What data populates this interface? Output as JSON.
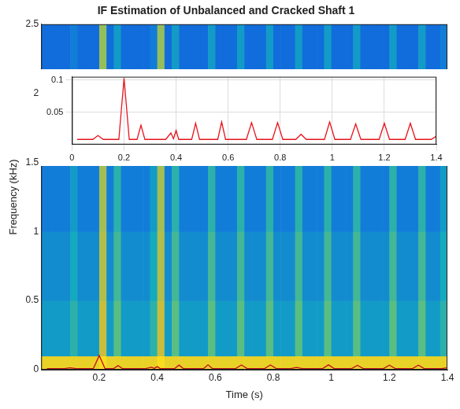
{
  "chart_data": [
    {
      "type": "spectrogram",
      "title": "IF Estimation of Unbalanced and Cracked Shaft 1",
      "xlabel": "Time (s)",
      "ylabel": "Frequency (kHz)",
      "xlim": [
        0,
        1.4
      ],
      "xticks": [
        0.2,
        0.4,
        0.6,
        0.8,
        1,
        1.2,
        1.4
      ],
      "ylim": [
        0,
        2.5
      ],
      "yticks": [
        0,
        0.5,
        1,
        1.5,
        2,
        2.5
      ],
      "grid": false,
      "heatmap": {
        "x_edges": [
          0,
          0.025,
          0.05,
          0.075,
          0.1,
          0.125,
          0.15,
          0.175,
          0.2,
          0.225,
          0.25,
          0.275,
          0.3,
          0.325,
          0.35,
          0.375,
          0.4,
          0.425,
          0.45,
          0.475,
          0.5,
          0.525,
          0.55,
          0.575,
          0.6,
          0.625,
          0.65,
          0.675,
          0.7,
          0.725,
          0.75,
          0.775,
          0.8,
          0.825,
          0.85,
          0.875,
          0.9,
          0.925,
          0.95,
          0.975,
          1,
          1.025,
          1.05,
          1.075,
          1.1,
          1.125,
          1.15,
          1.175,
          1.2,
          1.225,
          1.25,
          1.275,
          1.3,
          1.325,
          1.35,
          1.375,
          1.4
        ],
        "y_edges": [
          0,
          0.1,
          0.5,
          1,
          1.5,
          2,
          2.5
        ],
        "clim": [
          0,
          1
        ],
        "cells": [
          [
            0.95,
            0.95,
            0.95,
            0.95,
            0.95,
            0.95,
            0.95,
            0.95,
            1,
            0.95,
            0.95,
            0.95,
            0.95,
            0.95,
            0.95,
            0.95,
            1,
            0.95,
            0.95,
            0.95,
            0.95,
            0.95,
            0.95,
            0.95,
            0.95,
            0.95,
            0.95,
            0.95,
            0.95,
            0.95,
            0.95,
            0.95,
            0.95,
            0.95,
            0.95,
            0.95,
            0.95,
            0.95,
            0.95,
            0.95,
            0.95,
            0.95,
            0.95,
            0.95,
            0.95,
            0.95,
            0.95,
            0.95,
            0.95,
            0.95,
            0.95,
            0.95,
            0.95,
            0.95,
            0.95,
            0.95
          ],
          [
            0.5,
            0.5,
            0.5,
            0.5,
            0.6,
            0.5,
            0.5,
            0.5,
            0.85,
            0.5,
            0.7,
            0.5,
            0.5,
            0.5,
            0.5,
            0.6,
            0.85,
            0.5,
            0.7,
            0.5,
            0.5,
            0.5,
            0.5,
            0.7,
            0.5,
            0.5,
            0.5,
            0.7,
            0.5,
            0.5,
            0.5,
            0.7,
            0.5,
            0.5,
            0.5,
            0.7,
            0.5,
            0.5,
            0.5,
            0.7,
            0.5,
            0.5,
            0.5,
            0.7,
            0.5,
            0.5,
            0.5,
            0.5,
            0.7,
            0.5,
            0.5,
            0.5,
            0.7,
            0.5,
            0.5,
            0.6
          ],
          [
            0.45,
            0.45,
            0.45,
            0.45,
            0.55,
            0.45,
            0.45,
            0.45,
            0.82,
            0.45,
            0.65,
            0.45,
            0.45,
            0.45,
            0.45,
            0.55,
            0.82,
            0.45,
            0.65,
            0.45,
            0.45,
            0.45,
            0.45,
            0.65,
            0.45,
            0.45,
            0.45,
            0.65,
            0.45,
            0.45,
            0.45,
            0.65,
            0.45,
            0.45,
            0.45,
            0.65,
            0.45,
            0.45,
            0.45,
            0.65,
            0.45,
            0.45,
            0.45,
            0.65,
            0.45,
            0.45,
            0.45,
            0.45,
            0.65,
            0.45,
            0.45,
            0.45,
            0.65,
            0.45,
            0.45,
            0.55
          ],
          [
            0.4,
            0.4,
            0.4,
            0.4,
            0.5,
            0.4,
            0.4,
            0.4,
            0.8,
            0.4,
            0.6,
            0.4,
            0.4,
            0.4,
            0.4,
            0.5,
            0.8,
            0.4,
            0.6,
            0.4,
            0.4,
            0.4,
            0.4,
            0.6,
            0.4,
            0.4,
            0.4,
            0.6,
            0.4,
            0.4,
            0.4,
            0.6,
            0.4,
            0.4,
            0.4,
            0.6,
            0.4,
            0.4,
            0.4,
            0.6,
            0.4,
            0.4,
            0.4,
            0.6,
            0.4,
            0.4,
            0.4,
            0.4,
            0.6,
            0.4,
            0.4,
            0.4,
            0.6,
            0.4,
            0.4,
            0.5
          ],
          [
            0.36,
            0.36,
            0.36,
            0.36,
            0.45,
            0.36,
            0.36,
            0.36,
            0.8,
            0.36,
            0.55,
            0.36,
            0.36,
            0.36,
            0.36,
            0.45,
            0.8,
            0.36,
            0.55,
            0.36,
            0.36,
            0.36,
            0.36,
            0.55,
            0.36,
            0.36,
            0.36,
            0.55,
            0.36,
            0.36,
            0.36,
            0.55,
            0.36,
            0.36,
            0.36,
            0.55,
            0.36,
            0.36,
            0.36,
            0.55,
            0.36,
            0.36,
            0.36,
            0.55,
            0.36,
            0.36,
            0.36,
            0.36,
            0.55,
            0.36,
            0.36,
            0.36,
            0.55,
            0.36,
            0.36,
            0.45
          ],
          [
            0.3,
            0.3,
            0.3,
            0.3,
            0.4,
            0.3,
            0.3,
            0.3,
            0.78,
            0.3,
            0.5,
            0.3,
            0.3,
            0.3,
            0.3,
            0.4,
            0.78,
            0.3,
            0.5,
            0.3,
            0.3,
            0.3,
            0.3,
            0.5,
            0.3,
            0.3,
            0.3,
            0.5,
            0.3,
            0.3,
            0.3,
            0.5,
            0.3,
            0.3,
            0.3,
            0.5,
            0.3,
            0.3,
            0.3,
            0.5,
            0.3,
            0.3,
            0.3,
            0.5,
            0.3,
            0.3,
            0.3,
            0.3,
            0.5,
            0.3,
            0.3,
            0.3,
            0.5,
            0.3,
            0.3,
            0.4
          ]
        ]
      },
      "x": [
        0.02,
        0.08,
        0.1,
        0.12,
        0.18,
        0.2,
        0.22,
        0.25,
        0.265,
        0.28,
        0.36,
        0.38,
        0.39,
        0.4,
        0.41,
        0.46,
        0.475,
        0.49,
        0.56,
        0.575,
        0.59,
        0.67,
        0.69,
        0.71,
        0.77,
        0.79,
        0.81,
        0.86,
        0.88,
        0.9,
        0.97,
        0.99,
        1.01,
        1.07,
        1.09,
        1.11,
        1.18,
        1.2,
        1.22,
        1.28,
        1.3,
        1.32,
        1.38,
        1.4
      ],
      "series": [
        {
          "color": "#c0101a",
          "values": [
            0.008,
            0.008,
            0.014,
            0.008,
            0.008,
            0.103,
            0.008,
            0.008,
            0.03,
            0.008,
            0.008,
            0.018,
            0.009,
            0.022,
            0.008,
            0.008,
            0.033,
            0.008,
            0.008,
            0.035,
            0.008,
            0.008,
            0.034,
            0.008,
            0.008,
            0.034,
            0.008,
            0.008,
            0.016,
            0.008,
            0.008,
            0.035,
            0.008,
            0.008,
            0.032,
            0.008,
            0.008,
            0.033,
            0.008,
            0.008,
            0.033,
            0.008,
            0.008,
            0.013
          ]
        }
      ]
    },
    {
      "type": "line",
      "xlim": [
        0,
        1.4
      ],
      "xticks": [
        0,
        0.2,
        0.4,
        0.6,
        0.8,
        1,
        1.2,
        1.4
      ],
      "ylim": [
        0,
        0.105
      ],
      "yticks": [
        0.05,
        0.1
      ],
      "grid": true,
      "x": [
        0.02,
        0.08,
        0.1,
        0.12,
        0.18,
        0.2,
        0.22,
        0.25,
        0.265,
        0.28,
        0.36,
        0.38,
        0.39,
        0.4,
        0.41,
        0.46,
        0.475,
        0.49,
        0.56,
        0.575,
        0.59,
        0.67,
        0.69,
        0.71,
        0.77,
        0.79,
        0.81,
        0.86,
        0.88,
        0.9,
        0.97,
        0.99,
        1.01,
        1.07,
        1.09,
        1.11,
        1.18,
        1.2,
        1.22,
        1.28,
        1.3,
        1.32,
        1.38,
        1.4
      ],
      "series": [
        {
          "color": "#e8141c",
          "values": [
            0.008,
            0.008,
            0.014,
            0.008,
            0.008,
            0.103,
            0.008,
            0.008,
            0.03,
            0.008,
            0.008,
            0.018,
            0.009,
            0.022,
            0.008,
            0.008,
            0.033,
            0.008,
            0.008,
            0.035,
            0.008,
            0.008,
            0.034,
            0.008,
            0.008,
            0.034,
            0.008,
            0.008,
            0.016,
            0.008,
            0.008,
            0.035,
            0.008,
            0.008,
            0.032,
            0.008,
            0.008,
            0.033,
            0.008,
            0.008,
            0.033,
            0.008,
            0.008,
            0.013
          ]
        }
      ]
    }
  ]
}
